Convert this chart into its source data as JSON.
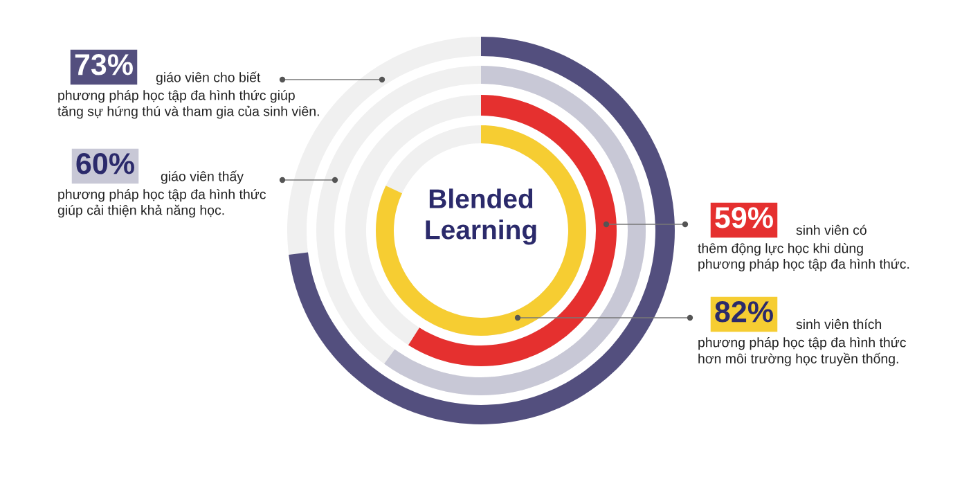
{
  "chart_data": {
    "type": "other",
    "title": "Blended Learning",
    "categories": [
      "giáo viên cho biết\nphương pháp học tập đa hình thức giúp\ntăng sự hứng thú và tham gia của sinh viên.",
      "giáo viên thấy\nphương pháp học tập đa hình thức\ngiúp cải thiện khả năng học.",
      "sinh viên có\nthêm động lực học khi dùng\nphương pháp học tập đa hình thức.",
      "sinh viên thích\nphương pháp học tập đa hình thức\nhơn môi trường học truyền thống."
    ],
    "values": [
      73,
      60,
      59,
      82
    ],
    "value_labels": [
      "73%",
      "60%",
      "59%",
      "82%"
    ],
    "colors": [
      "#534f7e",
      "#c8c8d6",
      "#e5302f",
      "#f6cd32"
    ]
  }
}
